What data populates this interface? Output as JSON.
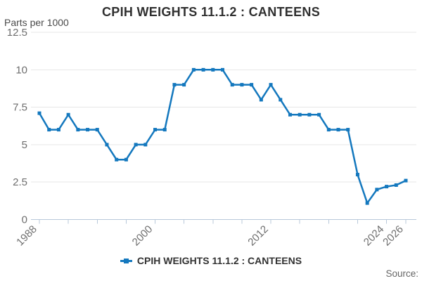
{
  "header": {
    "title": "CPIH WEIGHTS 11.1.2 : CANTEENS",
    "axis_unit_label": "Parts per 1000"
  },
  "legend": {
    "label": "CPIH WEIGHTS 11.1.2 : CANTEENS"
  },
  "footer": {
    "source_label": "Source:"
  },
  "colors": {
    "series_line": "#1478be",
    "grid_line": "#e7e7e7",
    "axis_line": "#b8c8da",
    "tick_label": "#6e6e6e",
    "title_text": "#303030",
    "legend_text": "#333333",
    "source_text": "#666666",
    "unit_label_text": "#4a4a4a"
  },
  "chart_data": {
    "type": "line",
    "title": "CPIH WEIGHTS 11.1.2 : CANTEENS",
    "ylabel": "Parts per 1000",
    "x": [
      1988,
      1989,
      1990,
      1991,
      1992,
      1993,
      1994,
      1995,
      1996,
      1997,
      1998,
      1999,
      2000,
      2001,
      2002,
      2003,
      2004,
      2005,
      2006,
      2007,
      2008,
      2009,
      2010,
      2011,
      2012,
      2013,
      2014,
      2015,
      2016,
      2017,
      2018,
      2019,
      2020,
      2021,
      2022,
      2023,
      2024,
      2025,
      2026
    ],
    "series": [
      {
        "name": "CPIH WEIGHTS 11.1.2 : CANTEENS",
        "values": [
          7.1,
          6,
          6,
          7,
          6,
          6,
          6,
          5,
          4,
          4,
          5,
          5,
          6,
          6,
          9,
          9,
          10,
          10,
          10,
          10,
          9,
          9,
          9,
          8,
          9,
          8,
          7,
          7,
          7,
          7,
          6,
          6,
          6,
          3,
          1.1,
          2,
          2.2,
          2.3,
          2.6
        ]
      }
    ],
    "ylim": [
      0,
      12.5
    ],
    "yticks": [
      0,
      2.5,
      5,
      7.5,
      10,
      12.5
    ],
    "xticks": [
      1988,
      1991,
      1994,
      1997,
      2000,
      2003,
      2006,
      2009,
      2012,
      2015,
      2018,
      2021,
      2024,
      2026
    ],
    "xtick_labels": [
      1988,
      2000,
      2012,
      2024,
      2026
    ],
    "grid": "horizontal",
    "legend_position": "bottom",
    "marker": "square"
  }
}
